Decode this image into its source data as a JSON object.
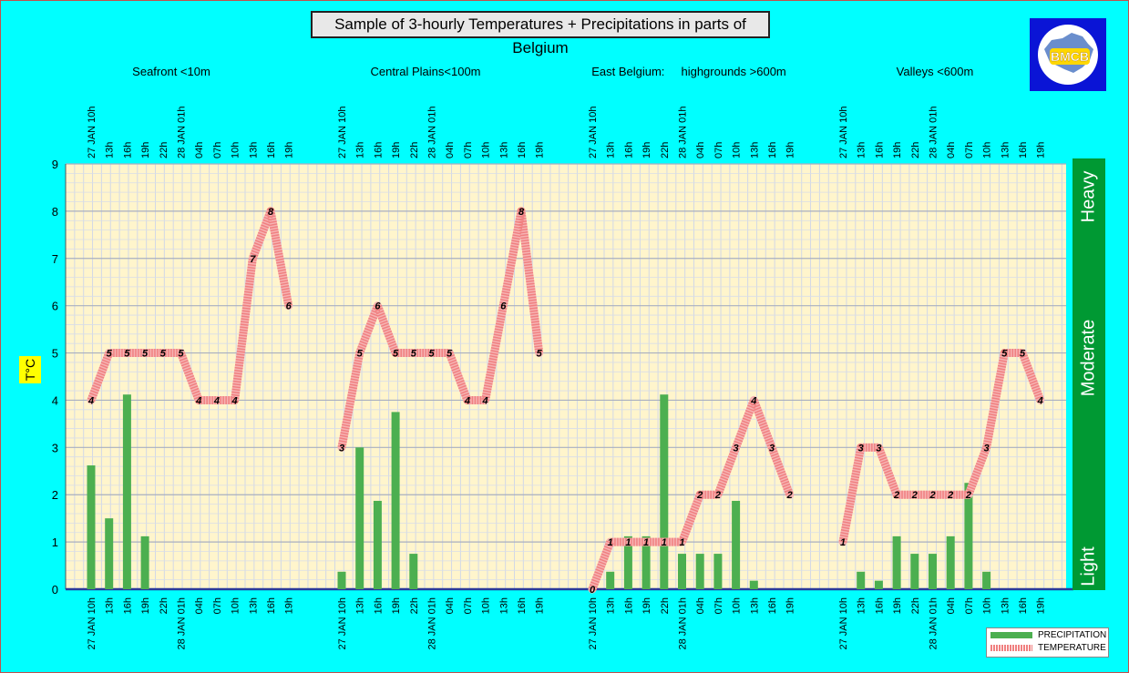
{
  "title": "Sample of 3-hourly Temperatures + Precipitations in parts of Belgium",
  "logo_text": "BMCB",
  "colors": {
    "background": "#00ffff",
    "plot_background": "#fff5cc",
    "precipitation": "#4caf50",
    "temperature": "#f08080",
    "intensity_bar": "#009933",
    "logo_background": "#0a14d6",
    "ylabel_background": "#ffff00"
  },
  "legend": {
    "precipitation_label": "PRECIPITATION",
    "temperature_label": "TEMPERATURE"
  },
  "chart_data": {
    "type": "bar",
    "title": "Sample of 3-hourly Temperatures + Precipitations in parts of Belgium",
    "ylabel": "T°C",
    "ylim": [
      0,
      9
    ],
    "yticks": [
      "0",
      "1",
      "2",
      "3",
      "4",
      "5",
      "6",
      "7",
      "8",
      "9"
    ],
    "grid": true,
    "legend_position": "bottom-right",
    "intensity_labels": [
      "Light",
      "Moderate",
      "Heavy"
    ],
    "time_labels": [
      "27 JAN 10h",
      "13h",
      "16h",
      "19h",
      "22h",
      "28 JAN 01h",
      "04h",
      "07h",
      "10h",
      "13h",
      "16h",
      "19h"
    ],
    "regions": [
      {
        "name": "Seafront <10m",
        "temperature": [
          4,
          5,
          5,
          5,
          5,
          5,
          4,
          4,
          4,
          7,
          8,
          6
        ],
        "precipitation": [
          2.62,
          1.5,
          4.12,
          1.12,
          0,
          0,
          0,
          0,
          0,
          0,
          0,
          0
        ]
      },
      {
        "name": "Central Plains<100m",
        "temperature": [
          3,
          5,
          6,
          5,
          5,
          5,
          5,
          4,
          4,
          6,
          8,
          5
        ],
        "precipitation": [
          0.37,
          3.0,
          1.87,
          3.75,
          0.75,
          0,
          0,
          0,
          0,
          0,
          0,
          0
        ]
      },
      {
        "name": "East Belgium:     highgrounds >600m",
        "temperature": [
          0,
          1,
          1,
          1,
          1,
          1,
          2,
          2,
          3,
          4,
          3,
          2
        ],
        "precipitation": [
          0,
          0.37,
          1.12,
          1.12,
          4.12,
          0.75,
          0.75,
          0.75,
          1.87,
          0.18,
          0,
          0
        ]
      },
      {
        "name": "Valleys <600m",
        "temperature": [
          1,
          3,
          3,
          2,
          2,
          2,
          2,
          2,
          3,
          5,
          5,
          4
        ],
        "precipitation": [
          0,
          0.37,
          0.18,
          1.12,
          0.75,
          0.75,
          1.12,
          2.25,
          0.37,
          0,
          0,
          0
        ]
      }
    ]
  }
}
